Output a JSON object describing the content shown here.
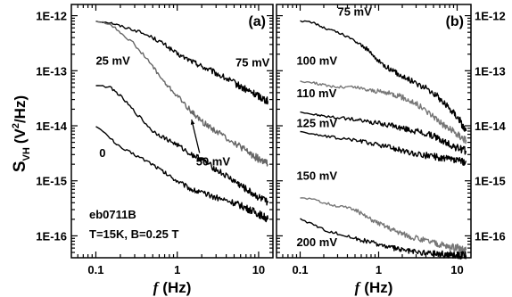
{
  "chart_data": [
    {
      "type": "line",
      "panel_label": "(a)",
      "xlabel_symbol": "f",
      "xlabel_unit": "(Hz)",
      "ylabel_main": "S",
      "ylabel_sub": "VH",
      "ylabel_unit_open": "(V",
      "ylabel_unit_sup": "2",
      "ylabel_unit_close": "/Hz)",
      "xscale": "log",
      "yscale": "log",
      "xlim": [
        0.05,
        15
      ],
      "ylim": [
        4e-17,
        1.6e-12
      ],
      "x_ticks": [
        {
          "v": 0.1,
          "label": "0.1"
        },
        {
          "v": 1,
          "label": "1"
        },
        {
          "v": 10,
          "label": "10"
        }
      ],
      "y_ticks": [
        {
          "v": 1e-12,
          "label": "1E-12"
        },
        {
          "v": 1e-13,
          "label": "1E-13"
        },
        {
          "v": 1e-14,
          "label": "1E-14"
        },
        {
          "v": 1e-15,
          "label": "1E-15"
        },
        {
          "v": 1e-16,
          "label": "1E-16"
        }
      ],
      "notes": [
        "eb0711B",
        "T=15K, B=0.25 T"
      ],
      "series": [
        {
          "label": "75 mV",
          "color": "#000000",
          "label_at": [
            5.2,
            1.2e-13
          ],
          "x": [
            0.1,
            0.15,
            0.2,
            0.3,
            0.5,
            0.7,
            1,
            1.5,
            2,
            3,
            5,
            7,
            10,
            13
          ],
          "y": [
            8e-13,
            7.5e-13,
            6.5e-13,
            5.5e-13,
            4e-13,
            3e-13,
            2e-13,
            1.5e-13,
            1.2e-13,
            9e-14,
            6e-14,
            4.5e-14,
            3.5e-14,
            2.8e-14
          ]
        },
        {
          "label": "50 mV",
          "color": "#666666",
          "label_at": [
            1.7,
            1.9e-15
          ],
          "arrow_to": [
            1.5,
            1.3e-14
          ],
          "x": [
            0.1,
            0.15,
            0.2,
            0.3,
            0.5,
            0.7,
            1,
            1.5,
            2,
            3,
            5,
            7,
            10,
            13
          ],
          "y": [
            8e-13,
            7e-13,
            5e-13,
            3e-13,
            1.2e-13,
            6e-14,
            3.5e-14,
            1.8e-14,
            1.2e-14,
            8e-15,
            5e-15,
            3.5e-15,
            2.5e-15,
            2e-15
          ]
        },
        {
          "label": "25 mV",
          "color": "#000000",
          "label_at": [
            0.1,
            1.3e-13
          ],
          "x": [
            0.1,
            0.15,
            0.2,
            0.3,
            0.5,
            0.7,
            1,
            1.5,
            2,
            3,
            5,
            7,
            10,
            13
          ],
          "y": [
            5.5e-14,
            5e-14,
            3.5e-14,
            1.8e-14,
            8e-15,
            6e-15,
            4.5e-15,
            3e-15,
            2.5e-15,
            1.6e-15,
            1e-15,
            7e-16,
            5e-16,
            4e-16
          ]
        },
        {
          "label": "0",
          "color": "#000000",
          "label_at": [
            0.11,
            2.7e-15
          ],
          "x": [
            0.1,
            0.15,
            0.2,
            0.3,
            0.5,
            0.7,
            1,
            1.5,
            2,
            3,
            5,
            7,
            10,
            13
          ],
          "y": [
            1e-14,
            6e-15,
            4e-15,
            3e-15,
            2e-15,
            1.4e-15,
            1e-15,
            7e-16,
            6e-16,
            5e-16,
            4e-16,
            3.2e-16,
            2.5e-16,
            2e-16
          ]
        }
      ]
    },
    {
      "type": "line",
      "panel_label": "(b)",
      "xlabel_symbol": "f",
      "xlabel_unit": "(Hz)",
      "xscale": "log",
      "yscale": "log",
      "xlim": [
        0.05,
        15
      ],
      "ylim": [
        4e-17,
        1.6e-12
      ],
      "x_ticks": [
        {
          "v": 0.1,
          "label": "0.1"
        },
        {
          "v": 1,
          "label": "1"
        },
        {
          "v": 10,
          "label": "10"
        }
      ],
      "y_ticks": [
        {
          "v": 1e-12,
          "label": "1E-12"
        },
        {
          "v": 1e-13,
          "label": "1E-13"
        },
        {
          "v": 1e-14,
          "label": "1E-14"
        },
        {
          "v": 1e-15,
          "label": "1E-15"
        },
        {
          "v": 1e-16,
          "label": "1E-16"
        }
      ],
      "series": [
        {
          "label": "75 mV",
          "color": "#000000",
          "label_at": [
            0.3,
            1e-12
          ],
          "x": [
            0.1,
            0.15,
            0.2,
            0.3,
            0.5,
            0.7,
            1,
            1.5,
            2,
            3,
            5,
            7,
            10,
            13
          ],
          "y": [
            8e-13,
            7.5e-13,
            6e-13,
            5e-13,
            3.5e-13,
            2.5e-13,
            1.5e-13,
            1e-13,
            8e-14,
            6e-14,
            4e-14,
            2.5e-14,
            1.5e-14,
            8e-15
          ]
        },
        {
          "label": "100 mV",
          "color": "#777777",
          "label_at": [
            0.09,
            1.3e-13
          ],
          "x": [
            0.1,
            0.15,
            0.2,
            0.3,
            0.5,
            0.7,
            1,
            1.5,
            2,
            3,
            5,
            7,
            10,
            13
          ],
          "y": [
            6.5e-14,
            6e-14,
            5.5e-14,
            5e-14,
            5e-14,
            4.5e-14,
            4.2e-14,
            3.8e-14,
            3.3e-14,
            2.5e-14,
            1.5e-14,
            1e-14,
            7e-15,
            5.5e-15
          ]
        },
        {
          "label": "110 mV",
          "color": "#000000",
          "label_at": [
            0.09,
            3.3e-14
          ],
          "x": [
            0.1,
            0.15,
            0.2,
            0.3,
            0.5,
            0.7,
            1,
            1.5,
            2,
            3,
            5,
            7,
            10,
            13
          ],
          "y": [
            1.8e-14,
            1.6e-14,
            1.5e-14,
            1.4e-14,
            1.3e-14,
            1.2e-14,
            1.1e-14,
            1e-14,
            9e-15,
            8e-15,
            6.5e-15,
            5e-15,
            4e-15,
            3.5e-15
          ]
        },
        {
          "label": "125 mV",
          "color": "#000000",
          "label_at": [
            0.09,
            9.5e-15
          ],
          "x": [
            0.1,
            0.15,
            0.2,
            0.3,
            0.5,
            0.7,
            1,
            1.5,
            2,
            3,
            5,
            7,
            10,
            13
          ],
          "y": [
            8e-15,
            7e-15,
            6.5e-15,
            6e-15,
            5.5e-15,
            5e-15,
            4.5e-15,
            4e-15,
            3.5e-15,
            3e-15,
            2.8e-15,
            2.5e-15,
            2.3e-15,
            2.2e-15
          ]
        },
        {
          "label": "150 mV",
          "color": "#777777",
          "label_at": [
            0.09,
            1.05e-15
          ],
          "x": [
            0.1,
            0.15,
            0.2,
            0.3,
            0.5,
            0.7,
            1,
            1.5,
            2,
            3,
            5,
            7,
            10,
            13
          ],
          "y": [
            5e-16,
            4.5e-16,
            4e-16,
            3.5e-16,
            3e-16,
            2.2e-16,
            1.7e-16,
            1.3e-16,
            1.1e-16,
            9e-17,
            7.5e-17,
            6.5e-17,
            6e-17,
            5.5e-17
          ]
        },
        {
          "label": "200 mV",
          "color": "#000000",
          "label_at": [
            0.09,
            6.5e-17
          ],
          "x": [
            0.1,
            0.15,
            0.2,
            0.3,
            0.5,
            0.7,
            1,
            1.5,
            2,
            3,
            5,
            7,
            10,
            13
          ],
          "y": [
            2e-16,
            1.6e-16,
            1.3e-16,
            1.1e-16,
            9e-17,
            8e-17,
            7e-17,
            6e-17,
            5.5e-17,
            5e-17,
            4.8e-17,
            4.6e-17,
            4.5e-17,
            4.4e-17
          ]
        }
      ]
    }
  ]
}
